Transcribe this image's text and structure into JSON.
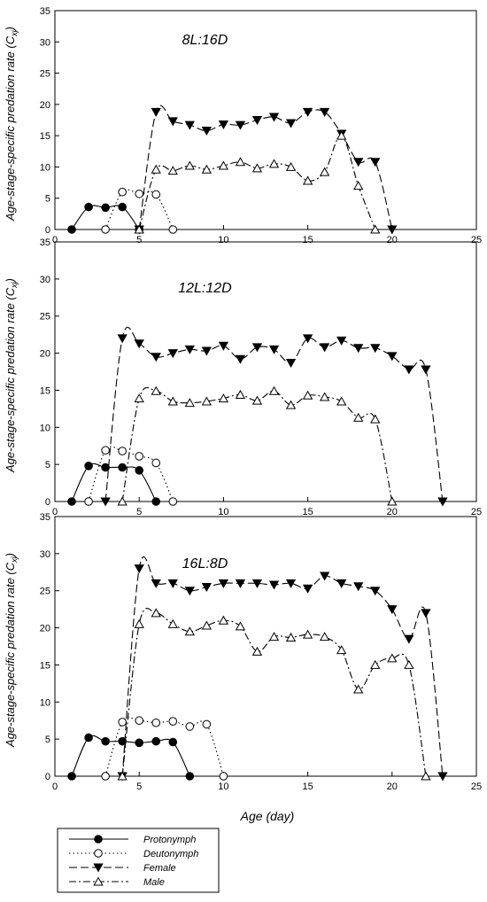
{
  "chart_data": {
    "type": "line",
    "xlabel": "Age (day)",
    "ylabel": "Age-stage-specific predation rate (C",
    "ylabel_sub": "xj",
    "ylabel_close": ")",
    "xlim": [
      0,
      25
    ],
    "ylim": [
      0,
      35
    ],
    "xticks": [
      "0",
      "5",
      "10",
      "15",
      "20",
      "25"
    ],
    "yticks": [
      "0",
      "5",
      "10",
      "15",
      "20",
      "25",
      "30",
      "35"
    ],
    "grid": false,
    "legend_position": "bottom-left",
    "panels": [
      {
        "title": "8L:16D",
        "series": [
          {
            "name": "Protonymph",
            "x": [
              1,
              2,
              3,
              4,
              5
            ],
            "y": [
              0,
              3.6,
              3.5,
              3.6,
              0
            ]
          },
          {
            "name": "Deutonymph",
            "x": [
              3,
              4,
              5,
              6,
              7
            ],
            "y": [
              0,
              6.0,
              5.7,
              5.6,
              0
            ]
          },
          {
            "name": "Female",
            "x": [
              5,
              6,
              7,
              8,
              9,
              10,
              11,
              12,
              13,
              14,
              15,
              16,
              17,
              18,
              19,
              20
            ],
            "y": [
              0,
              18.8,
              17.3,
              16.7,
              15.8,
              16.8,
              16.7,
              17.5,
              18.0,
              17.0,
              18.8,
              18.8,
              15.3,
              10.8,
              10.8,
              0
            ]
          },
          {
            "name": "Male",
            "x": [
              5,
              6,
              7,
              8,
              9,
              10,
              11,
              12,
              13,
              14,
              15,
              16,
              17,
              18,
              19
            ],
            "y": [
              0,
              9.6,
              9.4,
              10.2,
              9.6,
              10.2,
              10.8,
              9.8,
              10.5,
              10.0,
              7.8,
              9.2,
              15.0,
              7.0,
              0
            ]
          }
        ]
      },
      {
        "title": "12L:12D",
        "series": [
          {
            "name": "Protonymph",
            "x": [
              1,
              2,
              3,
              4,
              5,
              6
            ],
            "y": [
              0,
              4.8,
              4.6,
              4.6,
              4.2,
              0
            ]
          },
          {
            "name": "Deutonymph",
            "x": [
              2,
              3,
              4,
              5,
              6,
              7
            ],
            "y": [
              0,
              6.9,
              6.8,
              6.1,
              5.2,
              0
            ]
          },
          {
            "name": "Female",
            "x": [
              3,
              4,
              5,
              6,
              7,
              8,
              9,
              10,
              11,
              12,
              13,
              14,
              15,
              16,
              17,
              18,
              19,
              20,
              21,
              22,
              23
            ],
            "y": [
              0,
              22.0,
              21.3,
              19.5,
              20.0,
              20.5,
              20.3,
              21.0,
              19.2,
              20.8,
              20.5,
              18.7,
              22.0,
              20.8,
              21.7,
              20.7,
              20.7,
              19.6,
              17.8,
              17.8,
              0
            ]
          },
          {
            "name": "Male",
            "x": [
              4,
              5,
              6,
              7,
              8,
              9,
              10,
              11,
              12,
              13,
              14,
              15,
              16,
              17,
              18,
              19,
              20
            ],
            "y": [
              0,
              13.9,
              14.9,
              13.5,
              13.3,
              13.5,
              13.9,
              14.4,
              13.6,
              14.9,
              13.0,
              14.3,
              14.1,
              13.5,
              11.3,
              11.1,
              0
            ]
          }
        ]
      },
      {
        "title": "16L:8D",
        "series": [
          {
            "name": "Protonymph",
            "x": [
              1,
              2,
              3,
              4,
              5,
              6,
              7,
              8
            ],
            "y": [
              0,
              5.2,
              4.7,
              4.7,
              4.5,
              4.7,
              4.6,
              0
            ]
          },
          {
            "name": "Deutonymph",
            "x": [
              3,
              4,
              5,
              6,
              7,
              8,
              9,
              10
            ],
            "y": [
              0,
              7.3,
              7.5,
              7.2,
              7.4,
              6.7,
              7.0,
              0
            ]
          },
          {
            "name": "Female",
            "x": [
              4,
              5,
              6,
              7,
              8,
              9,
              10,
              11,
              12,
              13,
              14,
              15,
              16,
              17,
              18,
              19,
              20,
              21,
              22,
              23
            ],
            "y": [
              0,
              28.0,
              26.0,
              26.0,
              25.0,
              25.5,
              26.0,
              26.0,
              26.0,
              25.8,
              26.0,
              25.3,
              27.0,
              26.0,
              25.6,
              25.0,
              22.5,
              18.5,
              22.0,
              0
            ]
          },
          {
            "name": "Male",
            "x": [
              4,
              5,
              6,
              7,
              8,
              9,
              10,
              11,
              12,
              13,
              14,
              15,
              16,
              17,
              18,
              19,
              20,
              21,
              22
            ],
            "y": [
              0,
              20.5,
              22.0,
              20.5,
              19.5,
              20.3,
              21.0,
              20.2,
              16.8,
              18.8,
              18.7,
              19.1,
              18.8,
              17.0,
              11.7,
              15.0,
              15.9,
              15.0,
              0
            ]
          }
        ]
      }
    ]
  },
  "legend": {
    "items": [
      {
        "label": "Protonymph",
        "icon": "filled-circle-icon"
      },
      {
        "label": "Deutonymph",
        "icon": "open-circle-icon"
      },
      {
        "label": "Female",
        "icon": "filled-down-triangle-icon"
      },
      {
        "label": "Male",
        "icon": "open-up-triangle-icon"
      }
    ]
  },
  "colors": {
    "ink": "#000000",
    "background": "#ffffff"
  }
}
